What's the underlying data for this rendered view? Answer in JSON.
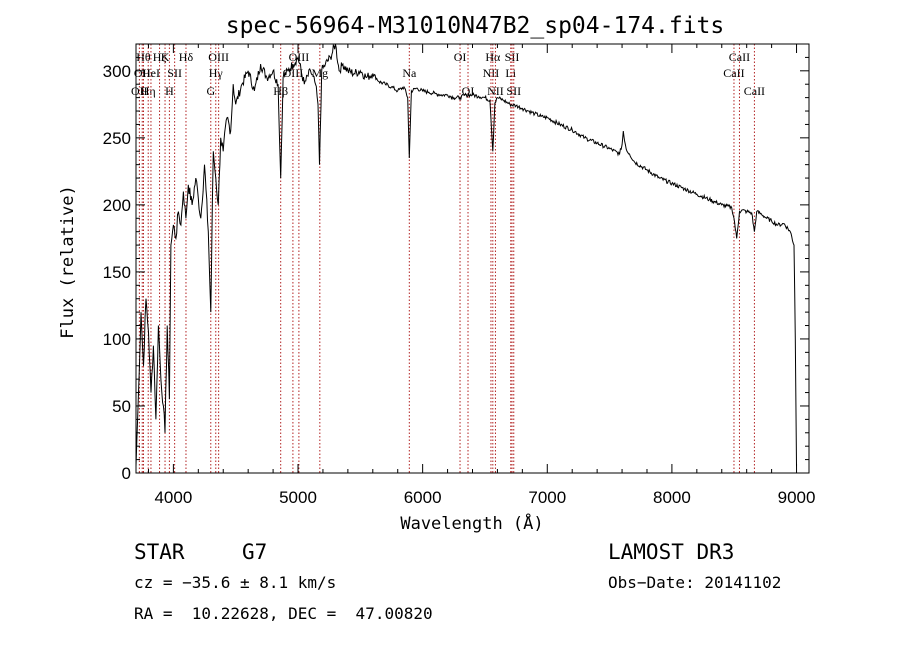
{
  "chart_data": {
    "type": "line",
    "title": "spec-56964-M31010N47B2_sp04-174.fits",
    "xlabel": "Wavelength (Å)",
    "ylabel": "Flux (relative)",
    "xlim": [
      3700,
      9100
    ],
    "ylim": [
      0,
      320
    ],
    "x_ticks": [
      4000,
      5000,
      6000,
      7000,
      8000,
      9000
    ],
    "y_ticks": [
      0,
      50,
      100,
      150,
      200,
      250,
      300
    ],
    "grid": false,
    "series": [
      {
        "name": "flux",
        "color": "#000000",
        "x": [
          3700,
          3720,
          3740,
          3760,
          3780,
          3800,
          3820,
          3840,
          3860,
          3880,
          3900,
          3920,
          3933,
          3950,
          3968,
          3980,
          4000,
          4020,
          4040,
          4060,
          4080,
          4100,
          4120,
          4150,
          4180,
          4200,
          4220,
          4250,
          4280,
          4300,
          4320,
          4340,
          4360,
          4380,
          4400,
          4430,
          4460,
          4480,
          4500,
          4550,
          4600,
          4650,
          4700,
          4750,
          4800,
          4840,
          4861,
          4880,
          4920,
          4960,
          5000,
          5050,
          5100,
          5140,
          5160,
          5172,
          5190,
          5220,
          5260,
          5300,
          5330,
          5360,
          5400,
          5450,
          5500,
          5550,
          5600,
          5650,
          5700,
          5750,
          5800,
          5850,
          5880,
          5893,
          5910,
          5950,
          6000,
          6050,
          6100,
          6150,
          6200,
          6250,
          6300,
          6350,
          6400,
          6450,
          6500,
          6540,
          6563,
          6580,
          6600,
          6650,
          6700,
          6750,
          6800,
          6850,
          6900,
          6950,
          7000,
          7100,
          7200,
          7300,
          7400,
          7500,
          7580,
          7600,
          7610,
          7620,
          7640,
          7660,
          7700,
          7800,
          7900,
          8000,
          8100,
          8200,
          8300,
          8400,
          8480,
          8498,
          8520,
          8542,
          8560,
          8600,
          8640,
          8662,
          8680,
          8720,
          8760,
          8800,
          8850,
          8900,
          8950,
          8980,
          8990,
          9000
        ],
        "values": [
          5,
          60,
          120,
          80,
          130,
          105,
          60,
          95,
          40,
          110,
          70,
          50,
          30,
          110,
          55,
          170,
          185,
          175,
          195,
          185,
          210,
          190,
          215,
          200,
          220,
          205,
          190,
          230,
          180,
          120,
          240,
          220,
          200,
          250,
          240,
          265,
          255,
          290,
          275,
          290,
          300,
          285,
          305,
          295,
          300,
          290,
          220,
          295,
          300,
          305,
          310,
          290,
          300,
          290,
          275,
          230,
          300,
          305,
          310,
          320,
          300,
          305,
          300,
          298,
          300,
          295,
          298,
          292,
          290,
          288,
          285,
          288,
          280,
          235,
          285,
          287,
          285,
          284,
          283,
          282,
          282,
          280,
          280,
          282,
          282,
          281,
          280,
          278,
          240,
          276,
          280,
          278,
          275,
          274,
          272,
          270,
          268,
          266,
          265,
          260,
          256,
          250,
          246,
          242,
          238,
          245,
          255,
          248,
          240,
          238,
          232,
          226,
          220,
          216,
          212,
          208,
          204,
          200,
          198,
          190,
          175,
          195,
          196,
          195,
          194,
          180,
          195,
          193,
          190,
          188,
          185,
          186,
          180,
          170,
          100,
          5
        ]
      }
    ],
    "lines": [
      {
        "x": 3727,
        "label": "OII",
        "row": 2
      },
      {
        "x": 3750,
        "label": "OII",
        "row": 1
      },
      {
        "x": 3760,
        "label": "Hθ",
        "row": 0
      },
      {
        "x": 3798,
        "label": "Hη",
        "row": 2
      },
      {
        "x": 3820,
        "label": "HeI",
        "row": 1
      },
      {
        "x": 3889,
        "label": "Hζ",
        "row": 0
      },
      {
        "x": 3933,
        "label": "K",
        "row": 0
      },
      {
        "x": 3968,
        "label": "H",
        "row": 2
      },
      {
        "x": 4010,
        "label": "SII",
        "row": 1
      },
      {
        "x": 4101,
        "label": "Hδ",
        "row": 0
      },
      {
        "x": 4300,
        "label": "G",
        "row": 2
      },
      {
        "x": 4340,
        "label": "Hγ",
        "row": 1
      },
      {
        "x": 4363,
        "label": "OIII",
        "row": 0
      },
      {
        "x": 4861,
        "label": "Hβ",
        "row": 2
      },
      {
        "x": 4959,
        "label": "OIII",
        "row": 1
      },
      {
        "x": 5007,
        "label": "OIII",
        "row": 0
      },
      {
        "x": 5175,
        "label": "Mg",
        "row": 1
      },
      {
        "x": 5893,
        "label": "Na",
        "row": 1
      },
      {
        "x": 6300,
        "label": "OI",
        "row": 0
      },
      {
        "x": 6364,
        "label": "OI",
        "row": 2
      },
      {
        "x": 6548,
        "label": "NII",
        "row": 1
      },
      {
        "x": 6563,
        "label": "Hα",
        "row": 0
      },
      {
        "x": 6584,
        "label": "NII",
        "row": 2
      },
      {
        "x": 6707,
        "label": "Li",
        "row": 1
      },
      {
        "x": 6717,
        "label": "SII",
        "row": 0
      },
      {
        "x": 6731,
        "label": "SII",
        "row": 2
      },
      {
        "x": 8498,
        "label": "CaII",
        "row": 1
      },
      {
        "x": 8542,
        "label": "CaII",
        "row": 0
      },
      {
        "x": 8662,
        "label": "CaII",
        "row": 2
      }
    ]
  },
  "info": {
    "class": "STAR",
    "subclass": "G7",
    "survey": "LAMOST DR3",
    "cz": "cz = −35.6 ± 8.1 km/s",
    "obs_date": "Obs−Date: 20141102",
    "coords": "RA =  10.22628, DEC =  47.00820"
  }
}
